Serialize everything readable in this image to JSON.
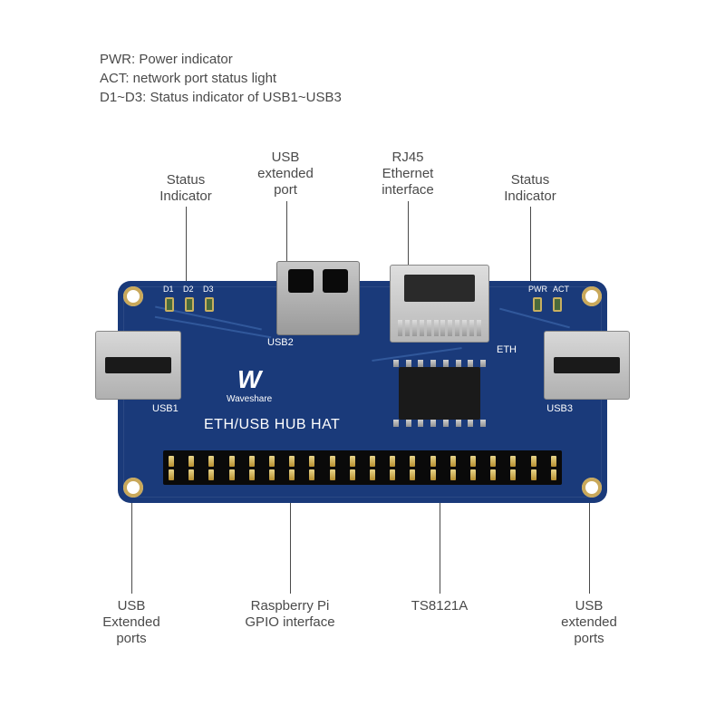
{
  "legend": {
    "line1": "PWR: Power indicator",
    "line2": "ACT: network port status light",
    "line3": "D1~D3: Status indicator of USB1~USB3"
  },
  "callouts": {
    "top": {
      "status_left": "Status\nIndicator",
      "usb_ext": "USB\nextended\nport",
      "rj45": "RJ45\nEthernet\ninterface",
      "status_right": "Status\nIndicator"
    },
    "bottom": {
      "usb_left": "USB\nExtended\nports",
      "gpio": "Raspberry Pi\nGPIO interface",
      "chip": "TS8121A",
      "usb_right": "USB\nextended\nports"
    }
  },
  "board": {
    "color": "#1a3a7a",
    "logo_mark": "W",
    "logo_name": "Waveshare",
    "product_name": "ETH/USB HUB HAT",
    "silk": {
      "d1": "D1",
      "d2": "D2",
      "d3": "D3",
      "usb1": "USB1",
      "usb2": "USB2",
      "usb3": "USB3",
      "pwr": "PWR",
      "act": "ACT",
      "eth": "ETH"
    },
    "gpio_pins_per_row": 20
  },
  "style": {
    "text_color": "#4a4a4a",
    "line_color": "#4a4a4a",
    "font_size_label": 15,
    "font_size_silk": 11
  }
}
